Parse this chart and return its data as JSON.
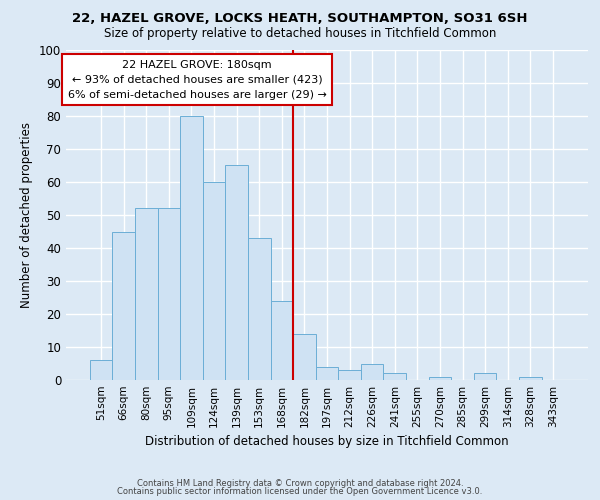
{
  "title1": "22, HAZEL GROVE, LOCKS HEATH, SOUTHAMPTON, SO31 6SH",
  "title2": "Size of property relative to detached houses in Titchfield Common",
  "xlabel": "Distribution of detached houses by size in Titchfield Common",
  "ylabel": "Number of detached properties",
  "bin_labels": [
    "51sqm",
    "66sqm",
    "80sqm",
    "95sqm",
    "109sqm",
    "124sqm",
    "139sqm",
    "153sqm",
    "168sqm",
    "182sqm",
    "197sqm",
    "212sqm",
    "226sqm",
    "241sqm",
    "255sqm",
    "270sqm",
    "285sqm",
    "299sqm",
    "314sqm",
    "328sqm",
    "343sqm"
  ],
  "bar_heights": [
    6,
    45,
    52,
    52,
    80,
    60,
    65,
    43,
    24,
    14,
    4,
    3,
    5,
    2,
    0,
    1,
    0,
    2,
    0,
    1,
    0
  ],
  "bar_color": "#cfe2f3",
  "bar_edge_color": "#6baed6",
  "vline_color": "#cc0000",
  "annotation_title": "22 HAZEL GROVE: 180sqm",
  "annotation_line1": "← 93% of detached houses are smaller (423)",
  "annotation_line2": "6% of semi-detached houses are larger (29) →",
  "annotation_box_color": "white",
  "annotation_box_edge": "#cc0000",
  "footer1": "Contains HM Land Registry data © Crown copyright and database right 2024.",
  "footer2": "Contains public sector information licensed under the Open Government Licence v3.0.",
  "ylim": [
    0,
    100
  ],
  "background_color": "#dce9f5"
}
